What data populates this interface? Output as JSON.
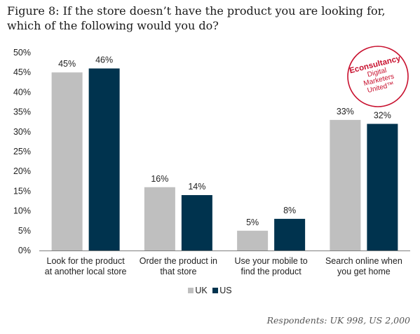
{
  "title": {
    "lead": "Figure 8:",
    "text": "If the store doesn’t have the product you are looking for, which of the following would you do?"
  },
  "logo": {
    "brand": "Econsultancy",
    "line1": "Digital",
    "line2": "Marketers",
    "line3": "United™"
  },
  "footnote": "Respondents: UK 998, US 2,000",
  "chart_data": {
    "type": "bar",
    "categories": [
      [
        "Look for the product",
        "at another local store"
      ],
      [
        "Order the product in",
        "that store"
      ],
      [
        "Use your mobile to",
        "find the product"
      ],
      [
        "Search online when",
        "you get home"
      ]
    ],
    "series": [
      {
        "name": "UK",
        "values": [
          45,
          16,
          5,
          33
        ],
        "labels": [
          "45%",
          "16%",
          "5%",
          "33%"
        ],
        "color": "#bfbfbf"
      },
      {
        "name": "US",
        "values": [
          46,
          14,
          8,
          32
        ],
        "labels": [
          "46%",
          "14%",
          "8%",
          "32%"
        ],
        "color": "#00334e"
      }
    ],
    "ylim": [
      0,
      50
    ],
    "yticks": [
      "0%",
      "5%",
      "10%",
      "15%",
      "20%",
      "25%",
      "30%",
      "35%",
      "40%",
      "45%",
      "50%"
    ],
    "xlabel": "",
    "ylabel": "",
    "legend": "bottom",
    "grid": false
  }
}
